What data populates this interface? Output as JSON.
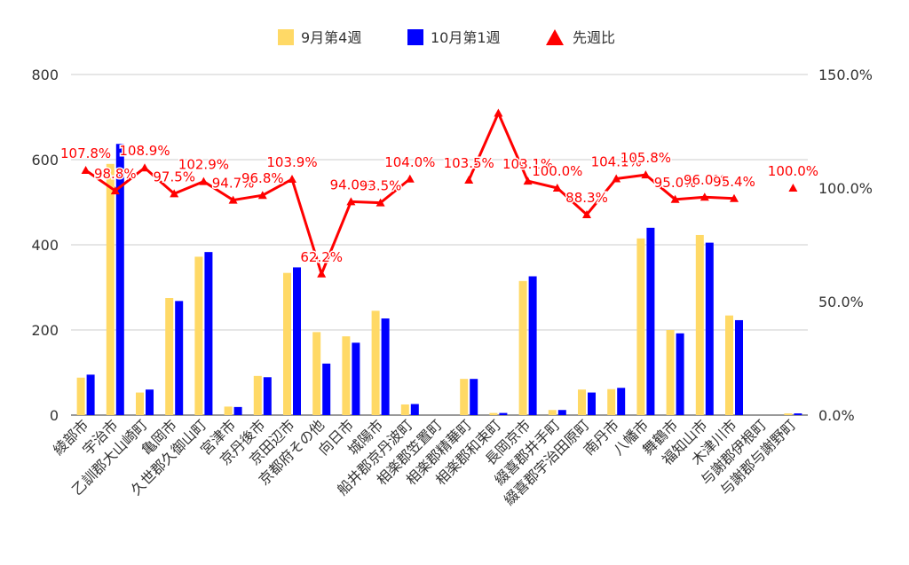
{
  "chart_data": {
    "type": "bar",
    "categories": [
      "綾部市",
      "宇治市",
      "乙訓郡大山崎町",
      "亀岡市",
      "久世郡久御山町",
      "宮津市",
      "京丹後市",
      "京田辺市",
      "京都府その他",
      "向日市",
      "城陽市",
      "船井郡京丹波町",
      "相楽郡笠置町",
      "相楽郡精華町",
      "相楽郡和束町",
      "長岡京市",
      "綴喜郡井手町",
      "綴喜郡宇治田原町",
      "南丹市",
      "八幡市",
      "舞鶴市",
      "福知山市",
      "木津川市",
      "与謝郡伊根町",
      "与謝郡与謝野町"
    ],
    "series": [
      {
        "name": "9月第4週",
        "axis": "left",
        "kind": "bar",
        "color": "#ffd966",
        "values": [
          88,
          590,
          53,
          275,
          372,
          20,
          92,
          334,
          195,
          185,
          245,
          25,
          0,
          85,
          5,
          315,
          12,
          60,
          61,
          415,
          200,
          423,
          234,
          0,
          4
        ]
      },
      {
        "name": "10月第1週",
        "axis": "left",
        "kind": "bar",
        "color": "#0000ff",
        "values": [
          95,
          637,
          60,
          268,
          383,
          19,
          89,
          347,
          121,
          170,
          227,
          26,
          0,
          85,
          5,
          326,
          12,
          53,
          64,
          440,
          192,
          405,
          223,
          0,
          4
        ]
      },
      {
        "name": "先週比",
        "axis": "right",
        "kind": "line",
        "color": "#ff0000",
        "values": [
          107.8,
          98.8,
          108.9,
          97.5,
          102.9,
          94.7,
          96.8,
          103.9,
          62.2,
          94.0,
          93.5,
          104.0,
          null,
          103.5,
          133.0,
          103.1,
          100.0,
          88.3,
          104.1,
          105.8,
          95.0,
          96.0,
          95.4,
          null,
          100.0
        ]
      }
    ],
    "point_labels": [
      "107.8%",
      "98.8%",
      "108.9%",
      "97.5%",
      "102.9%",
      "94.7%",
      "96.8%",
      "103.9%",
      "62.2%",
      "94.0%",
      "93.5%",
      "104.0%",
      "",
      "103.5%",
      "",
      "103.1%",
      "100.0%",
      "88.3%",
      "104.1%",
      "105.8%",
      "95.0%",
      "96.0%",
      "95.4%",
      "",
      "100.0%"
    ],
    "y_left": {
      "min": 0,
      "max": 800,
      "ticks": [
        "0",
        "200",
        "400",
        "600",
        "800"
      ]
    },
    "y_right": {
      "min": 0,
      "max": 150,
      "ticks": [
        "0.0%",
        "50.0%",
        "100.0%",
        "150.0%"
      ]
    },
    "legend": {
      "position": "top",
      "labels": [
        "9月第4週",
        "10月第1週",
        "先週比"
      ]
    },
    "grid": true
  }
}
